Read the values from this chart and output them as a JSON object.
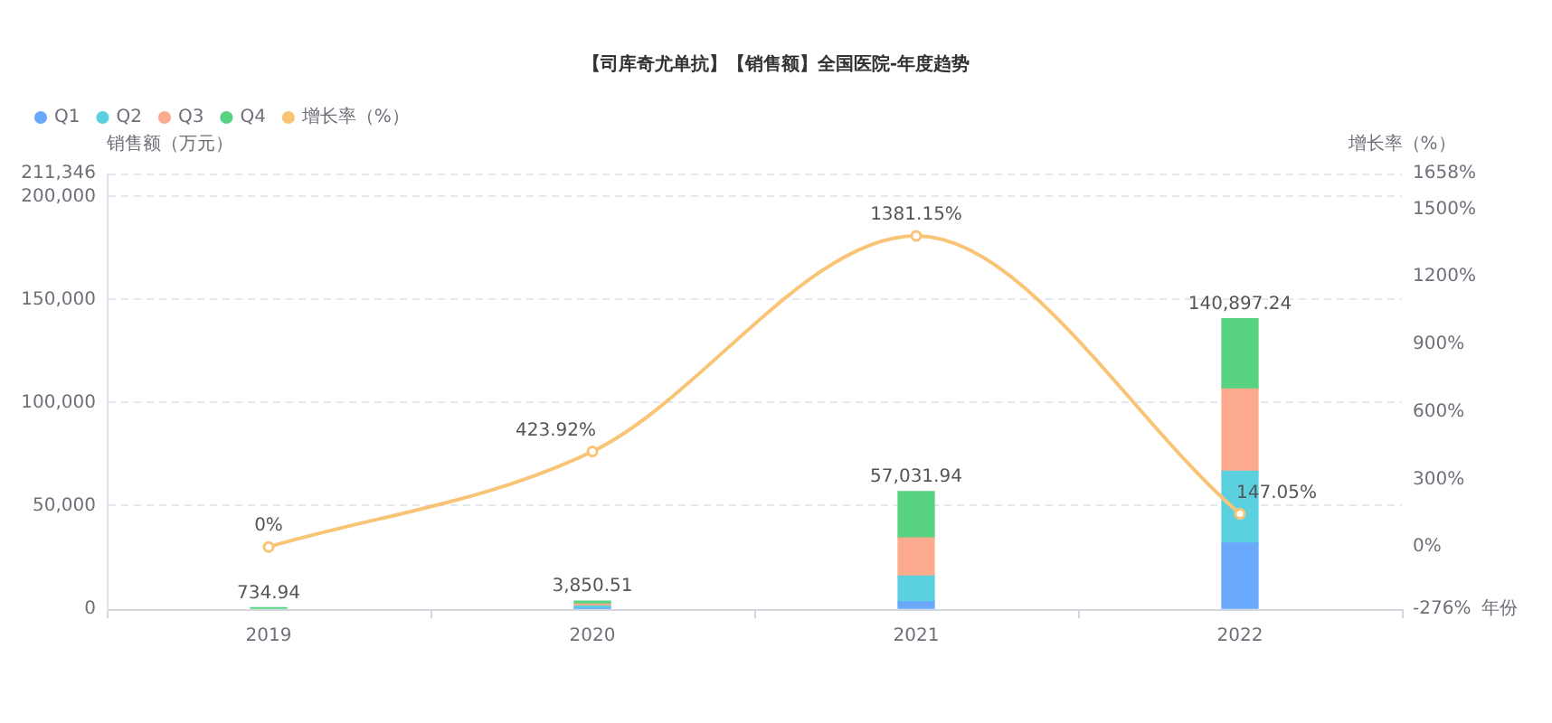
{
  "chart_data": {
    "type": "bar",
    "title": "【司库奇尤单抗】【销售额】全国医院-年度趋势",
    "xlabel": "年份",
    "ylabel": "销售额（万元）",
    "y2label": "增长率（%）",
    "categories": [
      "2019",
      "2020",
      "2021",
      "2022"
    ],
    "stacked": true,
    "series": [
      {
        "name": "Q1",
        "color": "#6aa8fc",
        "values": [
          null,
          500,
          3500,
          32000
        ]
      },
      {
        "name": "Q2",
        "color": "#5bd1df",
        "values": [
          null,
          1000,
          12500,
          34900
        ]
      },
      {
        "name": "Q3",
        "color": "#fcab8e",
        "values": [
          null,
          1000,
          18600,
          39900
        ]
      },
      {
        "name": "Q4",
        "color": "#58d381",
        "values": [
          734.94,
          1350.51,
          22431.94,
          34097.24
        ]
      },
      {
        "name": "增长率（%）",
        "type": "line",
        "axis": "y2",
        "color": "#f9c475",
        "marker": "circle",
        "values": [
          0,
          423.92,
          1381.15,
          147.05
        ],
        "value_labels": [
          "0%",
          "423.92%",
          "1381.15%",
          "147.05%"
        ]
      }
    ],
    "totals": [
      "734.94",
      "3,850.51",
      "57,031.94",
      "140,897.24"
    ],
    "ylim": [
      0,
      211346
    ],
    "yticks": [
      0,
      {
        "value": 50000,
        "label": "50,000"
      },
      {
        "value": 100000,
        "label": "100,000"
      },
      {
        "value": 150000,
        "label": "150,000"
      },
      {
        "value": 200000,
        "label": "200,000"
      },
      {
        "value": 211346,
        "label": "211,346"
      }
    ],
    "y2lim": [
      -276,
      1658
    ],
    "y2ticks": [
      {
        "value": -276,
        "label": "-276%"
      },
      {
        "value": 0,
        "label": "0%"
      },
      {
        "value": 300,
        "label": "300%"
      },
      {
        "value": 600,
        "label": "600%"
      },
      {
        "value": 900,
        "label": "900%"
      },
      {
        "value": 1200,
        "label": "1200%"
      },
      {
        "value": 1500,
        "label": "1500%"
      },
      {
        "value": 1658,
        "label": "1658%"
      }
    ],
    "grid": "y",
    "legend": "top left"
  }
}
